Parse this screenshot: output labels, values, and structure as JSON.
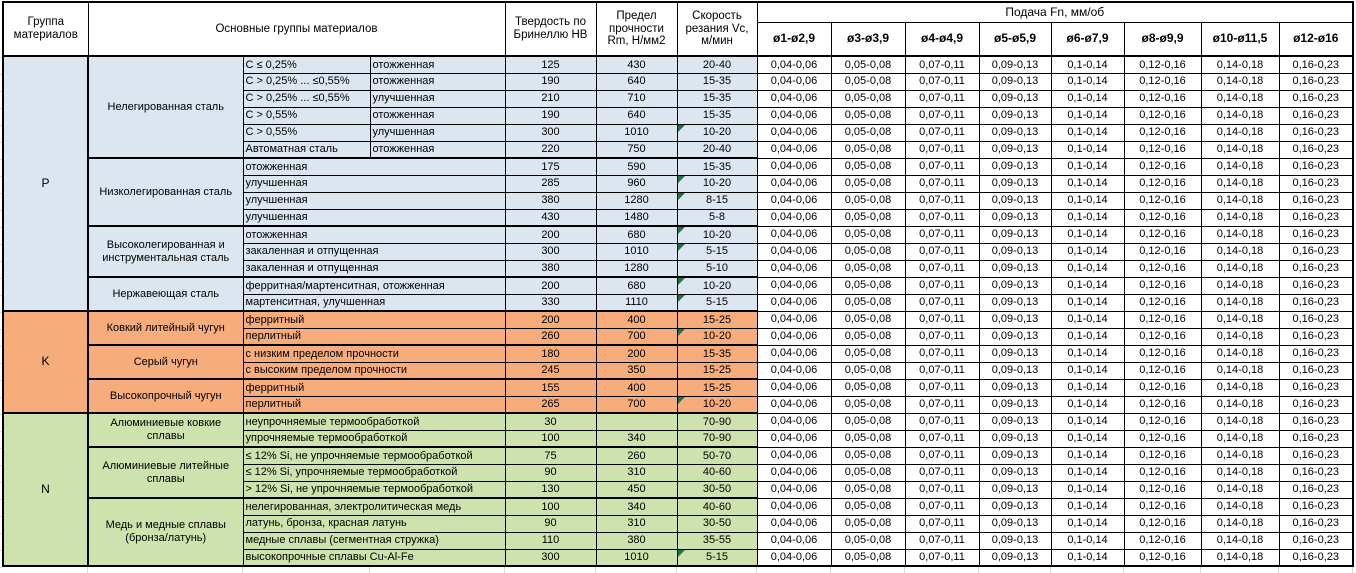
{
  "header": {
    "group": "Группа материалов",
    "materials": "Основные группы материалов",
    "hb": "Твердость по Бринеллю HB",
    "rm": "Предел прочности Rm, Н/мм2",
    "vc": "Скорость резания Vc, м/мин",
    "feed_title": "Подача Fn, мм/об",
    "feed_cols": [
      "ø1-ø2,9",
      "ø3-ø3,9",
      "ø4-ø4,9",
      "ø5-ø5,9",
      "ø6-ø7,9",
      "ø8-ø9,9",
      "ø10-ø11,5",
      "ø12-ø16"
    ]
  },
  "feed_values": [
    "0,04-0,06",
    "0,05-0,08",
    "0,07-0,11",
    "0,09-0,13",
    "0,1-0,14",
    "0,12-0,16",
    "0,14-0,18",
    "0,16-0,23"
  ],
  "colors": {
    "steel_tint": "#dce6f1",
    "cast_iron_tint": "#f7ac7b",
    "nonferrous_tint": "#cde2ad",
    "flag_green": "#217346",
    "border": "#000000"
  },
  "groups": [
    {
      "code": "P",
      "tint_key": "steel_tint",
      "families": [
        {
          "name": "Нелегированная сталь",
          "rows": [
            {
              "detail": "C ≤ 0,25%",
              "state": "отожженная",
              "hb": "125",
              "rm": "430",
              "vc": "20-40",
              "flag": false
            },
            {
              "detail": "C > 0,25% ... ≤0,55%",
              "state": "отожженная",
              "hb": "190",
              "rm": "640",
              "vc": "15-35",
              "flag": false
            },
            {
              "detail": "C > 0,25% ... ≤0,55%",
              "state": "улучшенная",
              "hb": "210",
              "rm": "710",
              "vc": "15-35",
              "flag": false
            },
            {
              "detail": "C > 0,55%",
              "state": "отожженная",
              "hb": "190",
              "rm": "640",
              "vc": "15-35",
              "flag": false
            },
            {
              "detail": "C > 0,55%",
              "state": "улучшенная",
              "hb": "300",
              "rm": "1010",
              "vc": "10-20",
              "flag": true
            },
            {
              "detail": "Автоматная сталь",
              "state": "отожженная",
              "hb": "220",
              "rm": "750",
              "vc": "20-40",
              "flag": false
            }
          ]
        },
        {
          "name": "Низколегированная сталь",
          "rows": [
            {
              "detail": "отожженная",
              "state": null,
              "hb": "175",
              "rm": "590",
              "vc": "15-35",
              "flag": false
            },
            {
              "detail": "улучшенная",
              "state": null,
              "hb": "285",
              "rm": "960",
              "vc": "10-20",
              "flag": true
            },
            {
              "detail": "улучшенная",
              "state": null,
              "hb": "380",
              "rm": "1280",
              "vc": "8-15",
              "flag": true
            },
            {
              "detail": "улучшенная",
              "state": null,
              "hb": "430",
              "rm": "1480",
              "vc": "5-8",
              "flag": false
            }
          ]
        },
        {
          "name": "Высоколегированная и инструментальная сталь",
          "rows": [
            {
              "detail": "отожженная",
              "state": null,
              "hb": "200",
              "rm": "680",
              "vc": "10-20",
              "flag": true
            },
            {
              "detail": "закаленная и отпущенная",
              "state": null,
              "hb": "300",
              "rm": "1010",
              "vc": "5-15",
              "flag": true
            },
            {
              "detail": "закаленная и отпущенная",
              "state": null,
              "hb": "380",
              "rm": "1280",
              "vc": "5-10",
              "flag": false
            }
          ]
        },
        {
          "name": "Нержавеющая сталь",
          "rows": [
            {
              "detail": "ферритная/мартенситная, отожженная",
              "state": null,
              "hb": "200",
              "rm": "680",
              "vc": "10-20",
              "flag": true
            },
            {
              "detail": "мартенситная, улучшенная",
              "state": null,
              "hb": "330",
              "rm": "1110",
              "vc": "5-15",
              "flag": true
            }
          ]
        }
      ]
    },
    {
      "code": "K",
      "tint_key": "cast_iron_tint",
      "families": [
        {
          "name": "Ковкий литейный чугун",
          "rows": [
            {
              "detail": "ферритный",
              "state": null,
              "hb": "200",
              "rm": "400",
              "vc": "15-25",
              "flag": false
            },
            {
              "detail": "перлитный",
              "state": null,
              "hb": "260",
              "rm": "700",
              "vc": "10-20",
              "flag": true
            }
          ]
        },
        {
          "name": "Серый чугун",
          "rows": [
            {
              "detail": "с низким пределом прочности",
              "state": null,
              "hb": "180",
              "rm": "200",
              "vc": "15-35",
              "flag": false
            },
            {
              "detail": "с высоким пределом прочности",
              "state": null,
              "hb": "245",
              "rm": "350",
              "vc": "15-25",
              "flag": false
            }
          ]
        },
        {
          "name": "Высокопрочный чугун",
          "rows": [
            {
              "detail": "ферритный",
              "state": null,
              "hb": "155",
              "rm": "400",
              "vc": "15-25",
              "flag": false
            },
            {
              "detail": "перлитный",
              "state": null,
              "hb": "265",
              "rm": "700",
              "vc": "10-20",
              "flag": true
            }
          ]
        }
      ]
    },
    {
      "code": "N",
      "tint_key": "nonferrous_tint",
      "families": [
        {
          "name": "Алюминиевые ковкие сплавы",
          "rows": [
            {
              "detail": "неупрочняемые термообработкой",
              "state": null,
              "hb": "30",
              "rm": "",
              "vc": "70-90",
              "flag": false
            },
            {
              "detail": "упрочняемые термообработкой",
              "state": null,
              "hb": "100",
              "rm": "340",
              "vc": "70-90",
              "flag": false
            }
          ]
        },
        {
          "name": "Алюминиевые литейные сплавы",
          "rows": [
            {
              "detail": "≤ 12% Si, не упрочняемые термообработкой",
              "state": null,
              "hb": "75",
              "rm": "260",
              "vc": "50-70",
              "flag": false
            },
            {
              "detail": "≤ 12% Si, упрочняемые термообработкой",
              "state": null,
              "hb": "90",
              "rm": "310",
              "vc": "40-60",
              "flag": false
            },
            {
              "detail": "> 12% Si, не упрочняемые термообработкой",
              "state": null,
              "hb": "130",
              "rm": "450",
              "vc": "30-50",
              "flag": false
            }
          ]
        },
        {
          "name": "Медь и медные сплавы (бронза/латунь)",
          "rows": [
            {
              "detail": "нелегированная, электролитическая медь",
              "state": null,
              "hb": "100",
              "rm": "340",
              "vc": "40-60",
              "flag": false
            },
            {
              "detail": "латунь, бронза, красная латунь",
              "state": null,
              "hb": "90",
              "rm": "310",
              "vc": "30-50",
              "flag": false
            },
            {
              "detail": "медные сплавы (сегментная стружка)",
              "state": null,
              "hb": "110",
              "rm": "380",
              "vc": "35-55",
              "flag": false
            },
            {
              "detail": "высокопрочные сплавы Cu-Al-Fe",
              "state": null,
              "hb": "300",
              "rm": "1010",
              "vc": "5-15",
              "flag": true
            }
          ]
        }
      ]
    }
  ]
}
